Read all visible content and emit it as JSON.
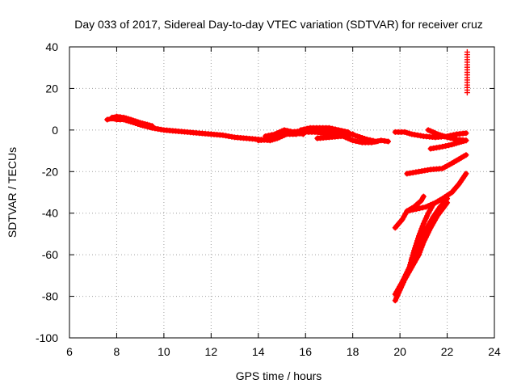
{
  "chart_data": {
    "type": "scatter",
    "title": "Day 033 of 2017, Sidereal Day-to-day VTEC variation (SDTVAR) for receiver cruz",
    "xlabel": "GPS time / hours",
    "ylabel": "SDTVAR / TECUs",
    "xlim": [
      6,
      24
    ],
    "ylim": [
      -100,
      40
    ],
    "xticks": [
      "6",
      "8",
      "10",
      "12",
      "14",
      "16",
      "18",
      "20",
      "22",
      "24"
    ],
    "yticks": [
      "40",
      "20",
      "0",
      "-20",
      "-40",
      "-60",
      "-80",
      "-100"
    ],
    "grid": true,
    "marker_color": "#ff0000",
    "series": [
      {
        "points": [
          [
            7.6,
            5
          ],
          [
            7.8,
            5.5
          ],
          [
            8.0,
            5
          ],
          [
            8.3,
            5
          ],
          [
            8.6,
            4
          ],
          [
            9.0,
            2.5
          ],
          [
            9.5,
            1
          ],
          [
            10.0,
            0
          ],
          [
            10.5,
            -0.5
          ],
          [
            11.0,
            -1
          ],
          [
            11.5,
            -1.5
          ],
          [
            12.0,
            -2
          ],
          [
            12.5,
            -2.5
          ],
          [
            13.0,
            -3.5
          ],
          [
            13.5,
            -4
          ],
          [
            14.0,
            -4.5
          ],
          [
            14.5,
            -5
          ],
          [
            14.8,
            -4
          ],
          [
            15.2,
            -2
          ],
          [
            15.6,
            -2
          ],
          [
            16.0,
            -1
          ],
          [
            16.4,
            -1
          ],
          [
            16.8,
            -1.5
          ],
          [
            17.2,
            -2
          ],
          [
            17.6,
            -3
          ],
          [
            18.0,
            -5
          ],
          [
            18.4,
            -6
          ],
          [
            18.8,
            -6
          ],
          [
            19.2,
            -5
          ],
          [
            19.5,
            -5.5
          ]
        ]
      },
      {
        "points": [
          [
            7.8,
            6
          ],
          [
            8.0,
            6.5
          ],
          [
            8.3,
            6
          ],
          [
            8.6,
            5
          ],
          [
            9.0,
            3.5
          ],
          [
            9.5,
            2
          ]
        ]
      },
      {
        "points": [
          [
            14.0,
            -5
          ],
          [
            14.5,
            -4.5
          ],
          [
            15.0,
            -2
          ],
          [
            15.4,
            -1
          ],
          [
            15.8,
            -0.5
          ],
          [
            16.2,
            -0.5
          ],
          [
            16.6,
            0
          ],
          [
            17.0,
            -0.5
          ],
          [
            17.4,
            -1
          ],
          [
            17.8,
            -1.5
          ],
          [
            18.2,
            -3
          ],
          [
            18.6,
            -4.5
          ],
          [
            19.0,
            -5.5
          ]
        ]
      },
      {
        "points": [
          [
            15.8,
            0
          ],
          [
            16.2,
            1
          ],
          [
            16.6,
            1
          ],
          [
            17.0,
            1
          ],
          [
            17.4,
            0
          ],
          [
            17.8,
            -1
          ]
        ]
      },
      {
        "points": [
          [
            14.3,
            -3
          ],
          [
            14.7,
            -2
          ],
          [
            15.1,
            0
          ],
          [
            15.5,
            -1
          ],
          [
            15.9,
            -2
          ]
        ]
      },
      {
        "points": [
          [
            16.5,
            -4
          ],
          [
            17.0,
            -3.5
          ],
          [
            17.5,
            -3
          ],
          [
            18.0,
            -2
          ]
        ]
      },
      {
        "points": [
          [
            19.8,
            -1
          ],
          [
            20.2,
            -1
          ],
          [
            20.5,
            -2
          ],
          [
            21.0,
            -3
          ],
          [
            21.5,
            -3.5
          ],
          [
            22.0,
            -3
          ],
          [
            22.4,
            -2
          ],
          [
            22.8,
            -1.5
          ]
        ]
      },
      {
        "points": [
          [
            21.2,
            0
          ],
          [
            21.6,
            -2
          ],
          [
            22.0,
            -3.5
          ],
          [
            22.4,
            -4.5
          ],
          [
            22.8,
            -5
          ]
        ]
      },
      {
        "points": [
          [
            21.3,
            -9
          ],
          [
            21.8,
            -8
          ],
          [
            22.2,
            -7
          ],
          [
            22.5,
            -6
          ],
          [
            22.8,
            -5
          ]
        ]
      },
      {
        "points": [
          [
            20.3,
            -21
          ],
          [
            20.8,
            -20
          ],
          [
            21.3,
            -19
          ],
          [
            21.8,
            -18.5
          ],
          [
            22.2,
            -16
          ],
          [
            22.5,
            -14
          ],
          [
            22.8,
            -12
          ]
        ]
      },
      {
        "points": [
          [
            19.8,
            -47
          ],
          [
            20.1,
            -43
          ],
          [
            20.3,
            -39
          ],
          [
            20.6,
            -37
          ],
          [
            20.9,
            -34
          ],
          [
            21.0,
            -32
          ]
        ]
      },
      {
        "points": [
          [
            20.3,
            -39
          ],
          [
            20.7,
            -38
          ],
          [
            21.1,
            -37
          ],
          [
            21.5,
            -35
          ],
          [
            21.8,
            -33
          ],
          [
            22.2,
            -30
          ],
          [
            22.5,
            -26
          ],
          [
            22.8,
            -21
          ]
        ]
      },
      {
        "points": [
          [
            19.8,
            -82
          ],
          [
            20.0,
            -77
          ],
          [
            20.2,
            -72
          ],
          [
            20.5,
            -66
          ],
          [
            20.8,
            -60
          ],
          [
            21.0,
            -54
          ],
          [
            21.3,
            -47
          ],
          [
            21.6,
            -41
          ],
          [
            22.0,
            -35
          ]
        ]
      },
      {
        "points": [
          [
            19.8,
            -79
          ],
          [
            20.1,
            -73
          ],
          [
            20.4,
            -66
          ],
          [
            20.6,
            -58
          ],
          [
            20.8,
            -51
          ],
          [
            21.0,
            -45
          ],
          [
            21.2,
            -40
          ],
          [
            21.4,
            -36
          ]
        ]
      },
      {
        "points": [
          [
            20.5,
            -62
          ],
          [
            20.8,
            -55
          ],
          [
            21.1,
            -48
          ],
          [
            21.4,
            -42
          ],
          [
            21.7,
            -37
          ],
          [
            22.0,
            -33
          ]
        ]
      },
      {
        "points": [
          [
            22.85,
            37.5
          ],
          [
            22.85,
            18
          ]
        ]
      }
    ]
  }
}
